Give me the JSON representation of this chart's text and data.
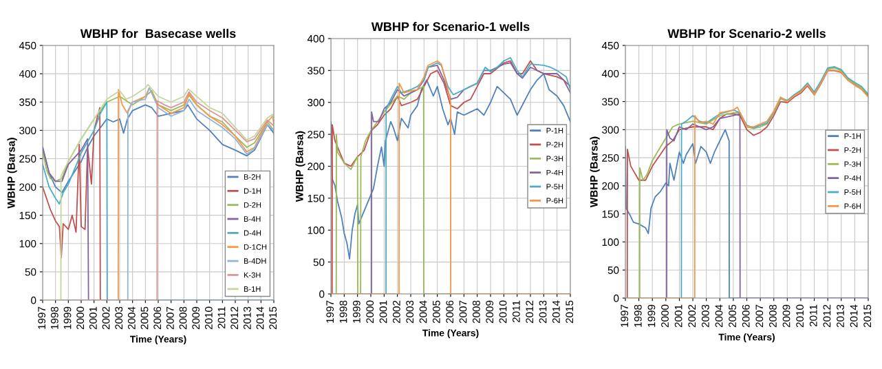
{
  "chart_data": [
    {
      "type": "line",
      "title": "WBHP for  Basecase wells",
      "xlabel": "Time (Years)",
      "ylabel": "WBHP (Barsa)",
      "xlim": [
        1997,
        2015
      ],
      "xticks": [
        1997,
        1998,
        1999,
        2000,
        2001,
        2002,
        2003,
        2004,
        2005,
        2006,
        2007,
        2008,
        2009,
        2010,
        2011,
        2012,
        2013,
        2014,
        2015
      ],
      "ylim": [
        0,
        450
      ],
      "yticks": [
        0,
        50,
        100,
        150,
        200,
        250,
        300,
        350,
        400,
        450
      ],
      "grid": true,
      "legend": "bottom right",
      "series": [
        {
          "name": "B-2H",
          "color": "#4f81bd",
          "x": [
            1997,
            1997.5,
            1998,
            1998.5,
            1999,
            2000,
            2000.5,
            2001,
            2001.5,
            2002,
            2002.5,
            2003,
            2003.3,
            2003.6,
            2004,
            2005,
            2005.5,
            2006,
            2007,
            2008,
            2008.3,
            2009,
            2010,
            2011,
            2012,
            2012.9,
            2013.5,
            2014.5,
            2015
          ],
          "values": [
            270,
            225,
            200,
            190,
            210,
            245,
            270,
            290,
            305,
            320,
            315,
            320,
            295,
            320,
            335,
            345,
            340,
            325,
            330,
            335,
            345,
            320,
            300,
            275,
            265,
            255,
            265,
            310,
            295
          ]
        },
        {
          "name": "D-1H",
          "color": "#c0504d",
          "x": [
            1997,
            1997.3,
            1997.6,
            1998,
            1998.3,
            1998.45,
            1998.6,
            1999,
            1999.3,
            1999.6,
            1999.85,
            2000,
            2000.3,
            2000.5,
            2000.8,
            2001,
            2001.45,
            2001.49,
            2015
          ],
          "values": [
            200,
            180,
            160,
            140,
            130,
            75,
            135,
            125,
            150,
            120,
            275,
            130,
            125,
            270,
            205,
            300,
            340,
            0,
            0
          ]
        },
        {
          "name": "D-2H",
          "color": "#9bbb59",
          "x": [
            1997,
            1997.3,
            1997.6,
            1998,
            1998.5,
            1999,
            2000,
            2001,
            2002,
            2003,
            2004,
            2005,
            2005.5,
            2006,
            2007,
            2008,
            2008.4,
            2009,
            2010,
            2011,
            2012,
            2012.9,
            2013.5,
            2014.5,
            2015
          ],
          "values": [
            265,
            230,
            215,
            210,
            215,
            245,
            285,
            320,
            350,
            360,
            345,
            360,
            370,
            345,
            335,
            345,
            362,
            345,
            325,
            315,
            290,
            270,
            278,
            315,
            300
          ]
        },
        {
          "name": "B-4H",
          "color": "#8064a2",
          "x": [
            1997,
            1997.5,
            1998,
            1998.5,
            1999,
            2000,
            2000.5,
            2000.57,
            2015
          ],
          "values": [
            270,
            225,
            210,
            210,
            240,
            265,
            285,
            0,
            0
          ]
        },
        {
          "name": "D-4H",
          "color": "#4bacc6",
          "x": [
            1997,
            1997.5,
            1998,
            1998.3,
            1998.6,
            1999,
            2000,
            2001,
            2001.5,
            2002,
            2002.03,
            2015
          ],
          "values": [
            240,
            200,
            180,
            170,
            190,
            205,
            260,
            300,
            330,
            350,
            0,
            0
          ]
        },
        {
          "name": "D-1CH",
          "color": "#f79646",
          "x": [
            1997,
            2002.89,
            2002.9,
            2003.2,
            2003.6,
            2004,
            2005,
            2005.3,
            2006,
            2007,
            2008,
            2008.4,
            2009,
            2010,
            2011,
            2012,
            2012.9,
            2013.5,
            2014.5,
            2014.9,
            2015
          ],
          "values": [
            0,
            0,
            372,
            345,
            330,
            350,
            360,
            375,
            345,
            330,
            340,
            365,
            345,
            325,
            310,
            290,
            262,
            270,
            315,
            325,
            312
          ]
        },
        {
          "name": "B-4DH",
          "color": "#95b3d7",
          "x": [
            1997,
            2003.63,
            2003.64,
            2004,
            2005,
            2005.3,
            2006,
            2007,
            2008,
            2008.4,
            2009,
            2010,
            2011,
            2012,
            2012.9,
            2013.5,
            2014.5,
            2015
          ],
          "values": [
            0,
            0,
            335,
            350,
            355,
            375,
            340,
            325,
            335,
            355,
            335,
            320,
            305,
            285,
            258,
            268,
            310,
            300
          ]
        },
        {
          "name": "K-3H",
          "color": "#d99694",
          "x": [
            1997,
            2005.91,
            2005.92,
            2006.5,
            2007,
            2008,
            2008.4,
            2009,
            2010,
            2011,
            2012,
            2012.9,
            2013.5,
            2014.5,
            2015
          ],
          "values": [
            0,
            0,
            352,
            345,
            340,
            350,
            368,
            350,
            335,
            322,
            300,
            280,
            285,
            318,
            308
          ]
        },
        {
          "name": "B-1H",
          "color": "#c3d69b",
          "x": [
            1997,
            1998.42,
            1998.43,
            1999,
            2000,
            2001,
            2002,
            2003,
            2003.5,
            2004,
            2005,
            2005.2,
            2006,
            2007,
            2008,
            2008.35,
            2009,
            2010,
            2011,
            2012,
            2012.9,
            2013.5,
            2014.5,
            2014.9,
            2015
          ],
          "values": [
            0,
            0,
            220,
            245,
            285,
            320,
            355,
            370,
            355,
            360,
            375,
            381,
            360,
            350,
            360,
            373,
            360,
            340,
            330,
            305,
            283,
            290,
            322,
            328,
            320
          ]
        }
      ]
    },
    {
      "type": "line",
      "title": "WBHP for Scenario-1 wells",
      "xlabel": "Time (Years)",
      "ylabel": "WBHP (Barsa)",
      "xlim": [
        1997,
        2015
      ],
      "xticks": [
        1997,
        1998,
        1999,
        2000,
        2001,
        2002,
        2003,
        2004,
        2005,
        2006,
        2007,
        2008,
        2009,
        2010,
        2011,
        2012,
        2013,
        2014,
        2015
      ],
      "ylim": [
        0,
        400
      ],
      "yticks": [
        0,
        50,
        100,
        150,
        200,
        250,
        300,
        350,
        400
      ],
      "grid": true,
      "legend": "right",
      "series": [
        {
          "name": "P-1H",
          "color": "#4f81bd",
          "x": [
            1997,
            1997.1,
            1997.3,
            1997.5,
            1997.8,
            1998,
            1998.2,
            1998.4,
            1998.6,
            1998.8,
            1999,
            1999.1,
            1999.5,
            1999.9,
            2000.2,
            2000.5,
            2000.8,
            2001,
            2001.1,
            2001.5,
            2001.7,
            2002,
            2002.3,
            2002.8,
            2003,
            2003.5,
            2003.8,
            2004.2,
            2004.7,
            2005,
            2005.4,
            2005.8,
            2006,
            2006.3,
            2006.5,
            2007,
            2007.5,
            2008,
            2008.5,
            2009,
            2009.5,
            2010,
            2010.5,
            2011,
            2011.5,
            2012,
            2012.5,
            2013,
            2013.4,
            2014,
            2014.5,
            2015
          ],
          "values": [
            270,
            180,
            170,
            145,
            120,
            95,
            80,
            55,
            100,
            125,
            140,
            110,
            130,
            150,
            165,
            200,
            230,
            200,
            240,
            270,
            260,
            240,
            275,
            260,
            280,
            295,
            320,
            335,
            310,
            325,
            290,
            265,
            275,
            250,
            285,
            280,
            285,
            290,
            280,
            300,
            325,
            315,
            305,
            280,
            300,
            320,
            335,
            345,
            320,
            310,
            295,
            270
          ]
        },
        {
          "name": "P-2H",
          "color": "#c0504d",
          "x": [
            1997,
            1997.09,
            1997.1,
            1997.3,
            1997.7,
            1998,
            1998.5,
            1999,
            1999.5,
            2000,
            2000.5,
            2001,
            2001.5,
            2002,
            2002.3,
            2003,
            2003.5,
            2004,
            2004.5,
            2005,
            2005.5,
            2006,
            2006.5,
            2007,
            2007.5,
            2008,
            2008.5,
            2009,
            2010,
            2010.5,
            2011,
            2011.4,
            2012,
            2012.5,
            2013,
            2014,
            2014.5,
            2015
          ],
          "values": [
            0,
            0,
            265,
            240,
            220,
            205,
            200,
            215,
            225,
            255,
            265,
            280,
            290,
            310,
            295,
            300,
            305,
            325,
            345,
            350,
            330,
            295,
            290,
            300,
            305,
            325,
            345,
            345,
            362,
            365,
            345,
            345,
            365,
            350,
            345,
            340,
            335,
            325
          ]
        },
        {
          "name": "P-3H",
          "color": "#9bbb59",
          "x": [
            1997,
            1997.4,
            1997.41,
            1997.5,
            1998,
            1998.5,
            1999,
            1999.02,
            1999.23,
            1999.25,
            1999.6,
            2000,
            2000.5,
            2001,
            2002,
            2002.5,
            2003,
            2003.5,
            2003.97,
            2003.98,
            2015
          ],
          "values": [
            0,
            0,
            250,
            222,
            205,
            195,
            215,
            0,
            0,
            215,
            240,
            255,
            270,
            285,
            310,
            305,
            315,
            320,
            325,
            0,
            0
          ]
        },
        {
          "name": "P-4H",
          "color": "#8064a2",
          "x": [
            1997,
            2000.05,
            2000.06,
            2000.2,
            2000.6,
            2001,
            2001.5,
            2002,
            2002.5,
            2003,
            2003.5,
            2004,
            2004.3,
            2005,
            2005.5,
            2006,
            2006.5,
            2007,
            2008,
            2008.5,
            2009,
            2010,
            2010.5,
            2011,
            2011.4,
            2012,
            2013,
            2014,
            2014.5,
            2015
          ],
          "values": [
            0,
            0,
            285,
            270,
            270,
            290,
            300,
            320,
            310,
            315,
            320,
            335,
            355,
            358,
            335,
            305,
            308,
            320,
            330,
            350,
            350,
            360,
            362,
            345,
            338,
            355,
            345,
            345,
            335,
            315
          ]
        },
        {
          "name": "P-5H",
          "color": "#4bacc6",
          "x": [
            1997,
            2001.14,
            2001.15,
            2001.5,
            2002,
            2002.3,
            2003,
            2003.5,
            2004,
            2004.3,
            2005,
            2005.3,
            2005.8,
            2006.2,
            2007,
            2008,
            2008.6,
            2009,
            2009.5,
            2010,
            2010.5,
            2011,
            2011.4,
            2012,
            2013,
            2013.5,
            2014,
            2014.7,
            2015
          ],
          "values": [
            0,
            0,
            290,
            305,
            325,
            315,
            320,
            325,
            335,
            355,
            362,
            358,
            325,
            312,
            320,
            330,
            355,
            348,
            355,
            365,
            370,
            350,
            340,
            360,
            358,
            355,
            350,
            340,
            320
          ]
        },
        {
          "name": "P-6H",
          "color": "#f79646",
          "x": [
            1997,
            2002.12,
            2002.13,
            2002.5,
            2003,
            2003.5,
            2004,
            2004.3,
            2005,
            2005.3,
            2005.8,
            2006,
            2006.01,
            2015
          ],
          "values": [
            0,
            0,
            330,
            315,
            318,
            320,
            340,
            358,
            365,
            360,
            320,
            300,
            0,
            0
          ]
        }
      ]
    },
    {
      "type": "line",
      "title": "WBHP for Scenario-2 wells",
      "xlabel": "Time (Years)",
      "ylabel": "WBHP (Barsa)",
      "xlim": [
        1997,
        2015
      ],
      "xticks": [
        1997,
        1998,
        1999,
        2000,
        2001,
        2002,
        2003,
        2004,
        2005,
        2006,
        2007,
        2008,
        2009,
        2010,
        2011,
        2012,
        2013,
        2014,
        2015
      ],
      "ylim": [
        0,
        450
      ],
      "yticks": [
        0,
        50,
        100,
        150,
        200,
        250,
        300,
        350,
        400,
        450
      ],
      "grid": true,
      "legend": "right",
      "series": [
        {
          "name": "P-1H",
          "color": "#4f81bd",
          "x": [
            1997,
            1997.05,
            1997.3,
            1997.6,
            1998,
            1998.5,
            1998.7,
            1998.9,
            1999.2,
            1999.6,
            2000,
            2000.2,
            2000.3,
            2000.6,
            2001,
            2001.3,
            2001.5,
            2002,
            2002.2,
            2002.6,
            2003,
            2003.3,
            2003.6,
            2004,
            2004.4,
            2004.69,
            2004.7,
            2015
          ],
          "values": [
            270,
            160,
            150,
            135,
            132,
            125,
            115,
            160,
            180,
            190,
            205,
            200,
            240,
            210,
            260,
            240,
            255,
            275,
            240,
            270,
            260,
            240,
            260,
            280,
            300,
            280,
            0,
            0
          ]
        },
        {
          "name": "P-2H",
          "color": "#c0504d",
          "x": [
            1997,
            1997.14,
            1997.15,
            1997.4,
            1998,
            1998.5,
            1999,
            2000,
            2000.5,
            2001,
            2002,
            2002.5,
            2003,
            2003.5,
            2004,
            2004.5,
            2005,
            2005.5,
            2006,
            2006.5,
            2007,
            2007.5,
            2008,
            2008.5,
            2009,
            2009.5,
            2010,
            2010.5,
            2011,
            2011.5,
            2012,
            2012.5,
            2013,
            2013.5,
            2014,
            2014.5,
            2015
          ],
          "values": [
            0,
            0,
            265,
            235,
            210,
            210,
            235,
            270,
            280,
            300,
            305,
            305,
            305,
            300,
            320,
            328,
            328,
            325,
            300,
            290,
            295,
            305,
            325,
            350,
            348,
            358,
            365,
            378,
            362,
            382,
            405,
            405,
            402,
            388,
            380,
            372,
            360
          ]
        },
        {
          "name": "P-3H",
          "color": "#9bbb59",
          "x": [
            1997,
            1998.06,
            1998.07,
            1998.3,
            1998.6,
            1999,
            2000,
            2000.5,
            2001,
            2002,
            2003,
            2004,
            2005,
            2005.5,
            2006,
            2006.5,
            2007,
            2007.5,
            2008,
            2008.5,
            2009,
            2009.5,
            2010,
            2010.5,
            2011,
            2011.5,
            2012,
            2012.5,
            2013,
            2013.5,
            2014,
            2014.5,
            2015
          ],
          "values": [
            0,
            0,
            232,
            210,
            220,
            245,
            285,
            305,
            310,
            315,
            310,
            325,
            330,
            330,
            305,
            302,
            305,
            310,
            330,
            355,
            350,
            360,
            368,
            382,
            365,
            385,
            408,
            410,
            405,
            390,
            382,
            375,
            362
          ]
        },
        {
          "name": "P-4H",
          "color": "#8064a2",
          "x": [
            1997,
            2000.06,
            2000.07,
            2000.3,
            2000.6,
            2001,
            2001.5,
            2002,
            2002.5,
            2003,
            2003.5,
            2004,
            2005,
            2005.49,
            2005.5,
            2015
          ],
          "values": [
            0,
            0,
            300,
            285,
            280,
            305,
            300,
            310,
            305,
            300,
            305,
            320,
            325,
            328,
            0,
            0
          ]
        },
        {
          "name": "P-5H",
          "color": "#4bacc6",
          "x": [
            1997,
            2001.15,
            2001.16,
            2001.5,
            2002,
            2002.5,
            2003,
            2004,
            2005,
            2005.5,
            2006,
            2006.5,
            2007,
            2007.5,
            2008,
            2008.5,
            2009,
            2009.5,
            2010,
            2010.5,
            2011,
            2011.5,
            2012,
            2012.5,
            2013,
            2013.5,
            2014,
            2014.5,
            2015
          ],
          "values": [
            0,
            0,
            310,
            315,
            325,
            315,
            312,
            328,
            335,
            330,
            308,
            303,
            308,
            312,
            332,
            357,
            352,
            362,
            370,
            383,
            367,
            387,
            410,
            412,
            407,
            392,
            384,
            377,
            363
          ]
        },
        {
          "name": "P-6H",
          "color": "#f79646",
          "x": [
            1997,
            2002.14,
            2002.15,
            2002.5,
            2003,
            2003.5,
            2004,
            2005,
            2005.3,
            2006,
            2006.5,
            2007,
            2007.5,
            2008,
            2008.5,
            2009,
            2009.5,
            2010,
            2010.5,
            2011,
            2011.5,
            2012,
            2012.5,
            2013,
            2013.5,
            2014,
            2014.5,
            2015
          ],
          "values": [
            0,
            0,
            325,
            312,
            315,
            310,
            330,
            335,
            340,
            305,
            305,
            310,
            315,
            333,
            358,
            350,
            360,
            367,
            380,
            363,
            383,
            406,
            406,
            403,
            388,
            379,
            372,
            358
          ]
        }
      ]
    }
  ]
}
